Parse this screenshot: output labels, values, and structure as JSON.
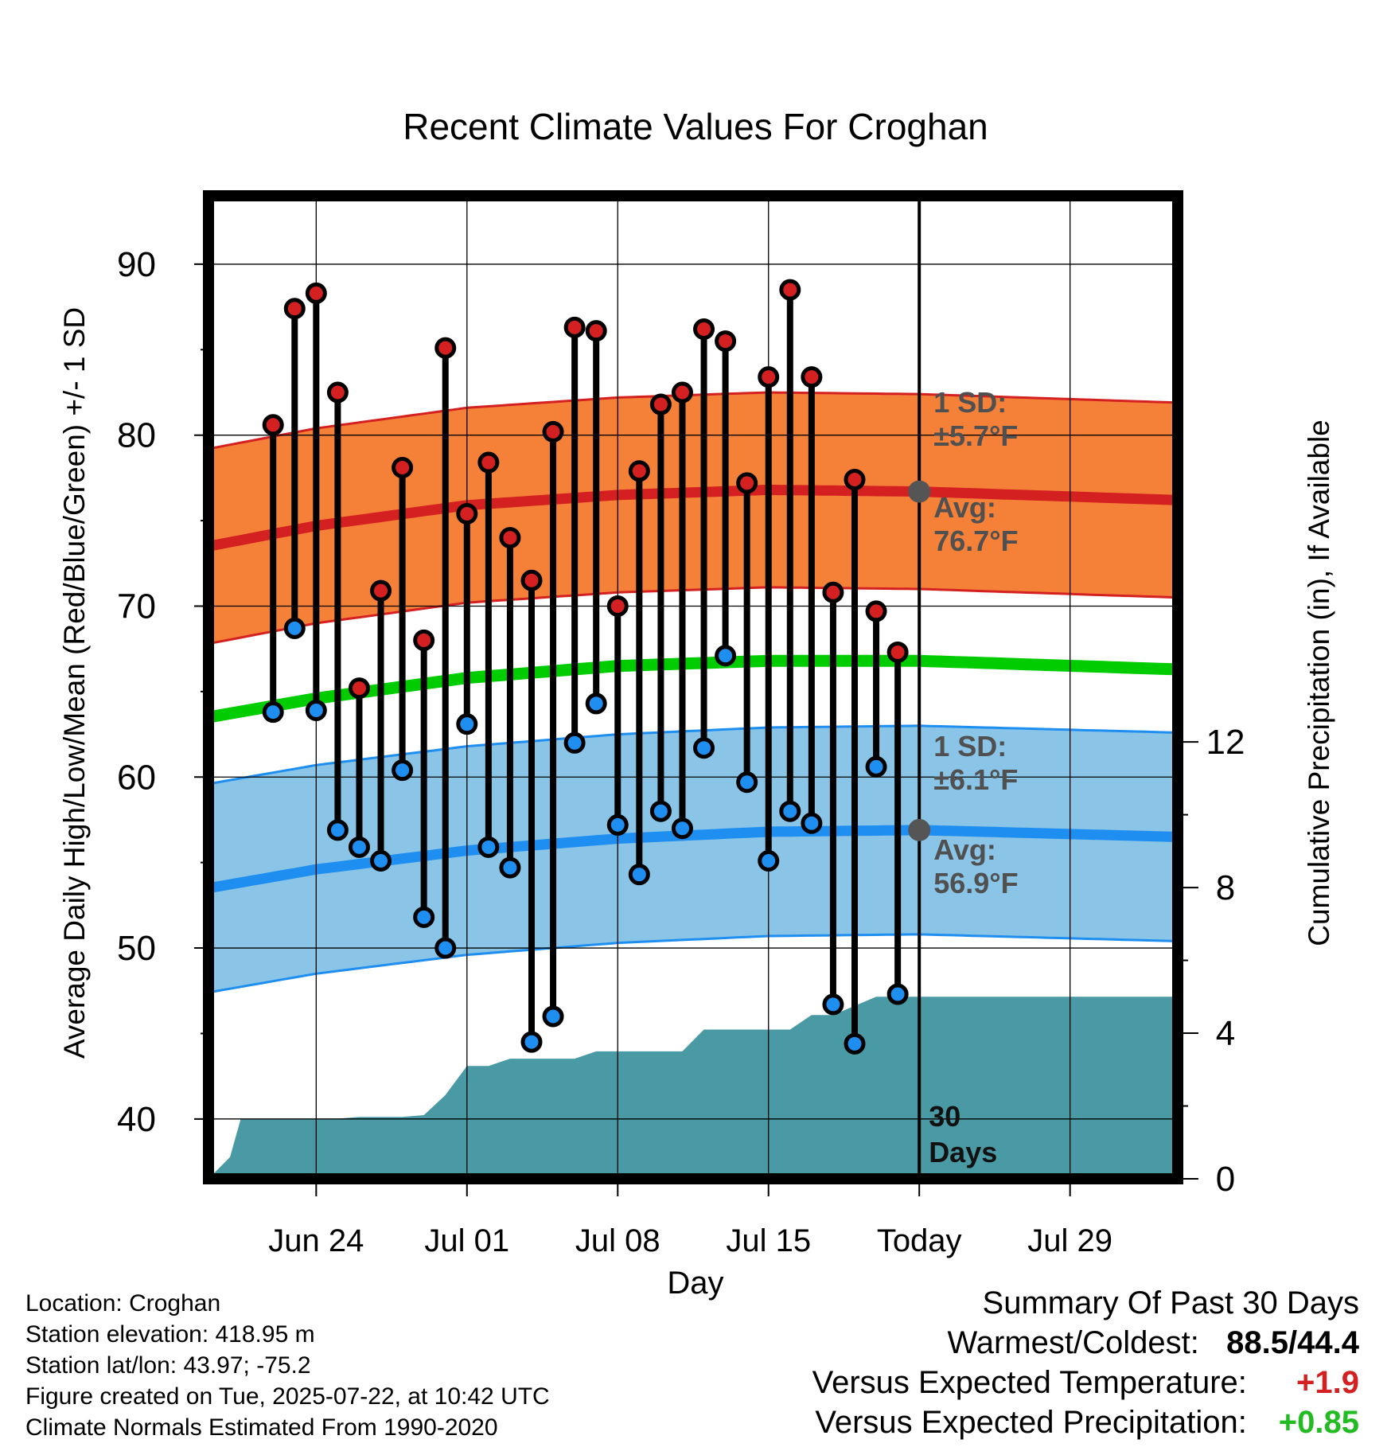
{
  "chart_data": {
    "type": "line",
    "title": "Recent Climate Values For Croghan",
    "xlabel": "Day",
    "ylabel_left": "Average Daily High/Low/Mean (Red/Blue/Green) +/- 1 SD",
    "ylabel_right": "Cumulative Precipitation (in), If Available",
    "ylim_left": [
      36.5,
      94
    ],
    "yticks_left": [
      40,
      50,
      60,
      70,
      80,
      90
    ],
    "ylim_right": [
      0,
      27
    ],
    "yticks_right": [
      0,
      4,
      8,
      12
    ],
    "x_days_range": [
      -33,
      12
    ],
    "xticks": [
      {
        "day": -28,
        "label": "Jun 24"
      },
      {
        "day": -21,
        "label": "Jul 01"
      },
      {
        "day": -14,
        "label": "Jul 08"
      },
      {
        "day": -7,
        "label": "Jul 15"
      },
      {
        "day": 0,
        "label": "Today"
      },
      {
        "day": 7,
        "label": "Jul 29"
      }
    ],
    "grid": true,
    "days": [
      -30,
      -29,
      -28,
      -27,
      -26,
      -25,
      -24,
      -23,
      -22,
      -21,
      -20,
      -19,
      -18,
      -17,
      -16,
      -15,
      -14,
      -13,
      -12,
      -11,
      -10,
      -9,
      -8,
      -7,
      -6,
      -5,
      -4,
      -3,
      -2,
      -1
    ],
    "highs": [
      80.6,
      87.4,
      88.3,
      82.5,
      65.2,
      70.9,
      78.1,
      68.0,
      85.1,
      75.4,
      78.4,
      74.0,
      71.5,
      80.2,
      86.3,
      86.1,
      70.0,
      77.9,
      81.8,
      82.5,
      86.2,
      85.5,
      77.2,
      83.4,
      88.5,
      83.4,
      70.8,
      77.4,
      69.7,
      67.3
    ],
    "lows": [
      63.8,
      68.7,
      63.9,
      56.9,
      55.9,
      55.1,
      60.4,
      51.8,
      50.0,
      63.1,
      55.9,
      54.7,
      44.5,
      46.0,
      62.0,
      64.3,
      57.2,
      54.3,
      58.0,
      57.0,
      61.7,
      67.1,
      59.7,
      55.1,
      58.0,
      57.3,
      46.7,
      44.4,
      60.6,
      47.3
    ],
    "normal_high": {
      "days": [
        -33,
        -28,
        -21,
        -14,
        -7,
        0,
        12
      ],
      "avg": [
        73.5,
        74.7,
        75.9,
        76.5,
        76.8,
        76.7,
        76.2
      ],
      "sd": 5.7
    },
    "normal_low": {
      "days": [
        -33,
        -28,
        -21,
        -14,
        -7,
        0,
        12
      ],
      "avg": [
        53.5,
        54.6,
        55.7,
        56.4,
        56.8,
        56.9,
        56.5
      ],
      "sd": 6.1
    },
    "normal_mean": {
      "days": [
        -33,
        -28,
        -21,
        -14,
        -7,
        0,
        12
      ],
      "avg": [
        63.5,
        64.6,
        65.8,
        66.5,
        66.8,
        66.8,
        66.3
      ]
    },
    "precip_cumulative": {
      "days": [
        -33,
        -32,
        -31.5,
        -30,
        -27,
        -26,
        -24,
        -23,
        -22,
        -21,
        -20,
        -19,
        -18,
        -16,
        -15,
        -14,
        -11,
        -10,
        -9,
        -8,
        -7,
        -6,
        -5,
        -4,
        -2,
        0,
        12
      ],
      "values": [
        0,
        0.6,
        1.65,
        1.65,
        1.65,
        1.7,
        1.7,
        1.75,
        2.3,
        3.1,
        3.1,
        3.3,
        3.3,
        3.3,
        3.5,
        3.5,
        3.5,
        4.1,
        4.1,
        4.1,
        4.1,
        4.1,
        4.5,
        4.5,
        5.0,
        5.0,
        5.0
      ]
    },
    "annotations": {
      "high_sd": "1 SD:",
      "high_sd_value": "±5.7°F",
      "high_avg": "Avg:",
      "high_avg_value": "76.7°F",
      "low_sd": "1 SD:",
      "low_sd_value": "±6.1°F",
      "low_avg": "Avg:",
      "low_avg_value": "56.9°F",
      "days_line1": "30",
      "days_line2": "Days"
    },
    "colors": {
      "high_band": "#f47a2e",
      "high_line": "#d42020",
      "low_band": "#84c2e6",
      "low_line": "#1e8ef0",
      "mean_line": "#00cc00",
      "precip": "#4a9aa5",
      "high_marker": "#d42020",
      "low_marker": "#1e8ef0",
      "annotation_text": "#505050"
    }
  },
  "footer": {
    "location": "Location: Croghan",
    "elevation": "Station elevation: 418.95 m",
    "latlon": "Station lat/lon: 43.97; -75.2",
    "created": "Figure created on Tue, 2025-07-22, at 10:42 UTC",
    "normals": "Climate Normals Estimated From 1990-2020"
  },
  "summary": {
    "heading": "Summary Of Past 30 Days",
    "warmest_label": "Warmest/Coldest:",
    "warmest_value": "88.5/44.4",
    "temp_label": "Versus Expected Temperature:",
    "temp_value": "+1.9",
    "temp_color": "#d42020",
    "precip_label": "Versus Expected Precipitation:",
    "precip_value": "+0.85",
    "precip_color": "#22bb22"
  }
}
